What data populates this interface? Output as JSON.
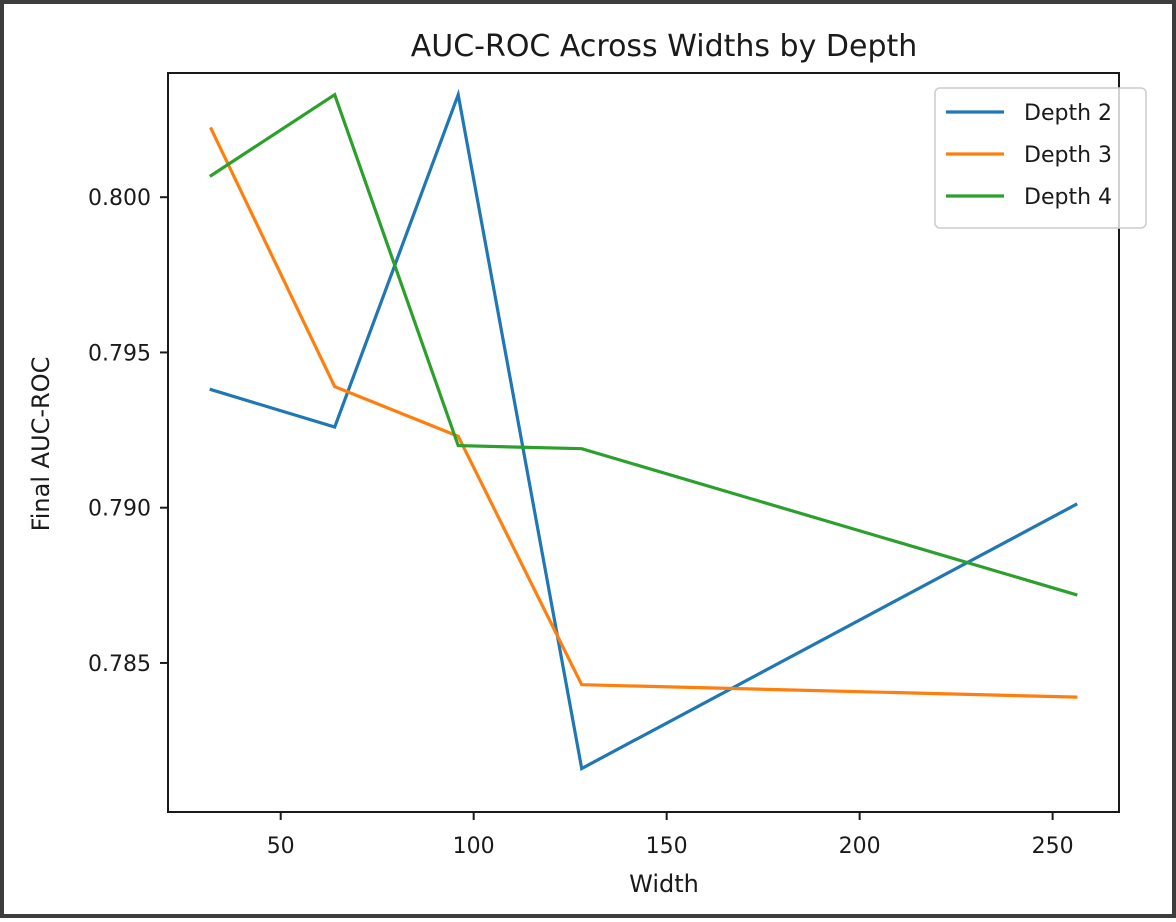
{
  "chart_data": {
    "type": "line",
    "title": "AUC-ROC Across Widths by Depth",
    "xlabel": "Width",
    "ylabel": "Final AUC-ROC",
    "x": [
      32,
      64,
      96,
      128,
      256
    ],
    "xlim": [
      20.8,
      267.2
    ],
    "ylim": [
      0.7802,
      0.804
    ],
    "xticks": [
      50,
      100,
      150,
      200,
      250
    ],
    "yticks": [
      0.785,
      0.79,
      0.795,
      0.8
    ],
    "ytick_format": 3,
    "grid": false,
    "legend_position": "top-right",
    "series": [
      {
        "name": "Depth 2",
        "color": "#1f77b4",
        "values": [
          0.7938,
          0.7926,
          0.8033,
          0.7816,
          0.7901
        ]
      },
      {
        "name": "Depth 3",
        "color": "#ff7f0e",
        "values": [
          0.8022,
          0.7939,
          0.7923,
          0.7843,
          0.7839
        ]
      },
      {
        "name": "Depth 4",
        "color": "#2ca02c",
        "values": [
          0.8007,
          0.8033,
          0.792,
          0.7919,
          0.7872
        ]
      }
    ]
  }
}
